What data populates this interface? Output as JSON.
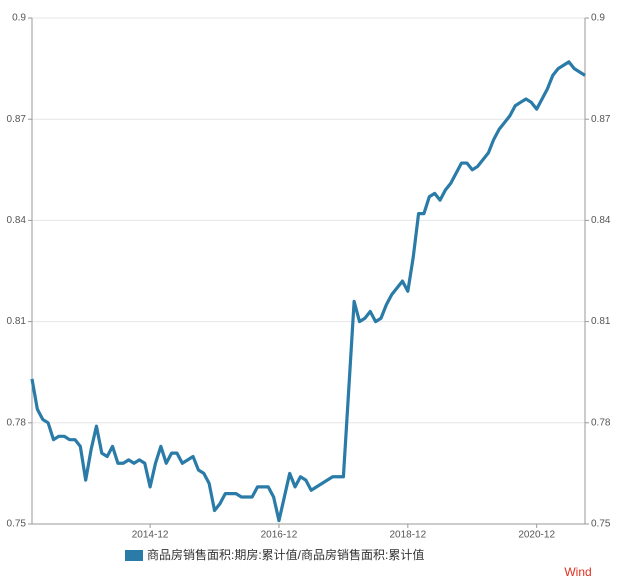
{
  "chart_data": {
    "type": "line",
    "x": [
      "2013-02",
      "2013-03",
      "2013-04",
      "2013-05",
      "2013-06",
      "2013-07",
      "2013-08",
      "2013-09",
      "2013-10",
      "2013-11",
      "2013-12",
      "2014-01",
      "2014-02",
      "2014-03",
      "2014-04",
      "2014-05",
      "2014-06",
      "2014-07",
      "2014-08",
      "2014-09",
      "2014-10",
      "2014-11",
      "2014-12",
      "2015-01",
      "2015-02",
      "2015-03",
      "2015-04",
      "2015-05",
      "2015-06",
      "2015-07",
      "2015-08",
      "2015-09",
      "2015-10",
      "2015-11",
      "2015-12",
      "2016-01",
      "2016-02",
      "2016-03",
      "2016-04",
      "2016-05",
      "2016-06",
      "2016-07",
      "2016-08",
      "2016-09",
      "2016-10",
      "2016-11",
      "2016-12",
      "2017-01",
      "2017-02",
      "2017-03",
      "2017-04",
      "2017-05",
      "2017-06",
      "2017-07",
      "2017-08",
      "2017-09",
      "2017-10",
      "2017-11",
      "2017-12",
      "2018-01",
      "2018-02",
      "2018-03",
      "2018-04",
      "2018-05",
      "2018-06",
      "2018-07",
      "2018-08",
      "2018-09",
      "2018-10",
      "2018-11",
      "2018-12",
      "2019-01",
      "2019-02",
      "2019-03",
      "2019-04",
      "2019-05",
      "2019-06",
      "2019-07",
      "2019-08",
      "2019-09",
      "2019-10",
      "2019-11",
      "2019-12",
      "2020-01",
      "2020-02",
      "2020-03",
      "2020-04",
      "2020-05",
      "2020-06",
      "2020-07",
      "2020-08",
      "2020-09",
      "2020-10",
      "2020-11",
      "2020-12",
      "2021-01",
      "2021-02",
      "2021-03",
      "2021-04",
      "2021-05",
      "2021-06",
      "2021-07",
      "2021-08",
      "2021-09"
    ],
    "series": [
      {
        "name": "商品房销售面积:期房:累计值/商品房销售面积:累计值",
        "color": "#2a7ba8",
        "values": [
          0.793,
          0.784,
          0.781,
          0.78,
          0.775,
          0.776,
          0.776,
          0.775,
          0.775,
          0.773,
          0.763,
          0.772,
          0.779,
          0.771,
          0.77,
          0.773,
          0.768,
          0.768,
          0.769,
          0.768,
          0.769,
          0.768,
          0.761,
          0.768,
          0.773,
          0.768,
          0.771,
          0.771,
          0.768,
          0.769,
          0.77,
          0.766,
          0.765,
          0.762,
          0.754,
          0.756,
          0.759,
          0.759,
          0.759,
          0.758,
          0.758,
          0.758,
          0.761,
          0.761,
          0.761,
          0.758,
          0.751,
          0.758,
          0.765,
          0.761,
          0.764,
          0.763,
          0.76,
          0.761,
          0.762,
          0.763,
          0.764,
          0.764,
          0.764,
          0.79,
          0.816,
          0.81,
          0.811,
          0.813,
          0.81,
          0.811,
          0.815,
          0.818,
          0.82,
          0.822,
          0.819,
          0.829,
          0.842,
          0.842,
          0.847,
          0.848,
          0.846,
          0.849,
          0.851,
          0.854,
          0.857,
          0.857,
          0.855,
          0.856,
          0.858,
          0.86,
          0.864,
          0.867,
          0.869,
          0.871,
          0.874,
          0.875,
          0.876,
          0.875,
          0.873,
          0.876,
          0.879,
          0.883,
          0.885,
          0.886,
          0.887,
          0.885,
          0.884,
          0.883
        ]
      }
    ],
    "xticks": [
      "2014-12",
      "2016-12",
      "2018-12",
      "2020-12"
    ],
    "ylim": [
      0.75,
      0.9
    ],
    "yticks": [
      0.75,
      0.78,
      0.81,
      0.84,
      0.87,
      0.9
    ],
    "y2lim": [
      0.75,
      0.9
    ],
    "y2ticks": [
      0.75,
      0.78,
      0.81,
      0.84,
      0.87,
      0.9
    ],
    "grid": true,
    "legend": "bottom",
    "source": "Wind"
  }
}
